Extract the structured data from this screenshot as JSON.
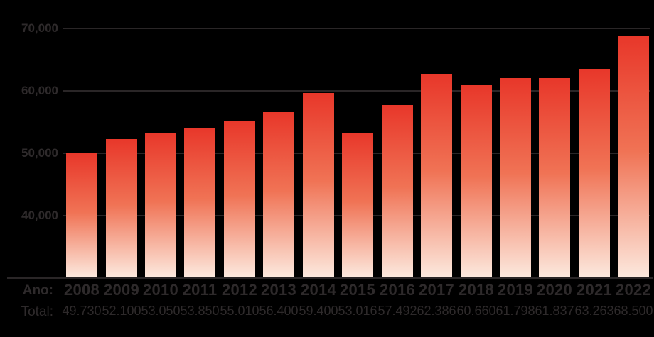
{
  "background": "#000000",
  "colors": {
    "text": "#2e2a2b",
    "gridline": "#2a2627",
    "bar_gradient_top": "#e8372a",
    "bar_gradient_mid": "#f07355",
    "bar_gradient_bottom": "#fce8dd"
  },
  "axis_rows": {
    "year_label": "Ano:",
    "total_label": "Total:"
  },
  "chart_data": {
    "type": "bar",
    "title": "",
    "xlabel": "Ano",
    "ylabel": "Total",
    "categories": [
      "2008",
      "2009",
      "2010",
      "2011",
      "2012",
      "2013",
      "2014",
      "2015",
      "2016",
      "2017",
      "2018",
      "2019",
      "2020",
      "2021",
      "2022"
    ],
    "values": [
      49730,
      52100,
      53050,
      53850,
      55010,
      56400,
      59400,
      53016,
      57492,
      62386,
      60660,
      61798,
      61837,
      63263,
      68500
    ],
    "total_labels": [
      "49.730",
      "52.100",
      "53.050",
      "53.850",
      "55.010",
      "56.400",
      "59.400",
      "53.016",
      "57.492",
      "62.386",
      "60.660",
      "61.798",
      "61.837",
      "63.263",
      "68.500"
    ],
    "ylim": [
      30000,
      75000
    ],
    "yticks": [
      70000,
      60000,
      50000,
      40000
    ],
    "ytick_labels": [
      "70,000",
      "60,000",
      "50,000",
      "40,000"
    ],
    "grid": true,
    "legend": false
  }
}
